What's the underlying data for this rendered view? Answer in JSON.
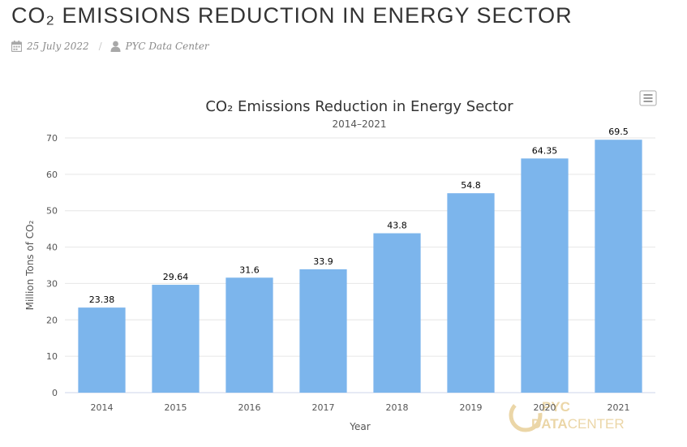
{
  "page": {
    "title": "CO₂ EMISSIONS REDUCTION IN ENERGY SECTOR",
    "date": "25 July 2022",
    "author": "PYC Data Center",
    "separator": "/"
  },
  "watermark": {
    "line1": "PYC",
    "line2": "DATA",
    "line3": "CENTER",
    "color": "#e8cf98"
  },
  "colors": {
    "bar": "#7cb5ec",
    "grid": "#e6e6e6",
    "text": "#333333",
    "axis_text": "#555555"
  },
  "chart_data": {
    "type": "bar",
    "title": "CO₂ Emissions Reduction in Energy Sector",
    "subtitle": "2014–2021",
    "xlabel": "Year",
    "ylabel": "Million Tons of CO₂",
    "ylim": [
      0,
      70
    ],
    "yticks": [
      0,
      10,
      20,
      30,
      40,
      50,
      60,
      70
    ],
    "categories": [
      "2014",
      "2015",
      "2016",
      "2017",
      "2018",
      "2019",
      "2020",
      "2021"
    ],
    "values": [
      23.38,
      29.64,
      31.6,
      33.9,
      43.8,
      54.8,
      64.35,
      69.5
    ],
    "data_labels": [
      "23.38",
      "29.64",
      "31.6",
      "33.9",
      "43.8",
      "54.8",
      "64.35",
      "69.5"
    ],
    "grid": true,
    "legend": false
  }
}
